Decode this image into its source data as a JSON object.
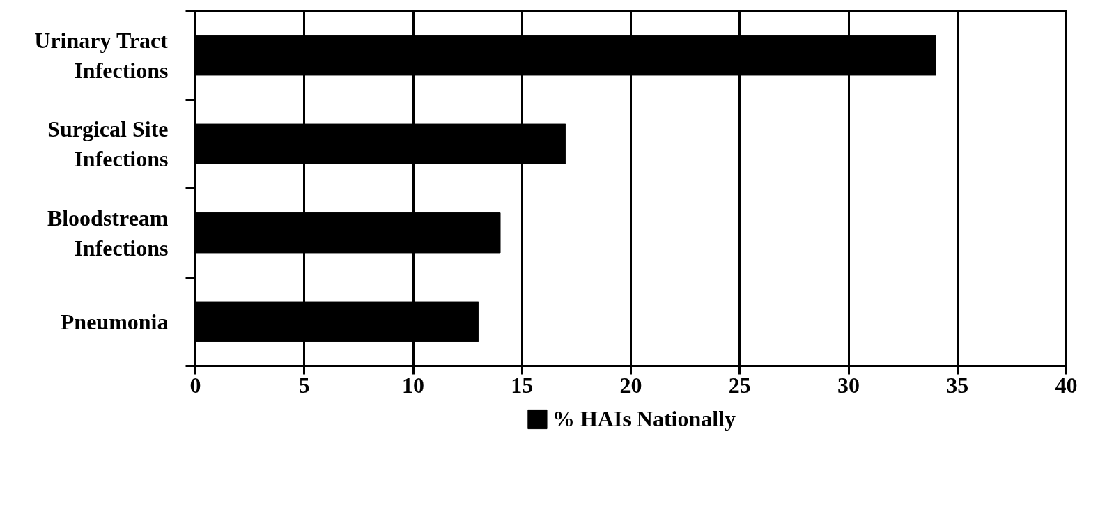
{
  "chart_data": {
    "type": "bar",
    "orientation": "horizontal",
    "categories": [
      "Urinary Tract Infections",
      "Surgical Site Infections",
      "Bloodstream Infections",
      "Pneumonia"
    ],
    "series": [
      {
        "name": "% HAIs Nationally",
        "color": "#000000",
        "values": [
          34,
          17,
          14,
          13
        ]
      }
    ],
    "xlim": [
      0,
      40
    ],
    "xticks": [
      0,
      5,
      10,
      15,
      20,
      25,
      30,
      35,
      40
    ],
    "grid": "x",
    "legend": "bottom"
  }
}
